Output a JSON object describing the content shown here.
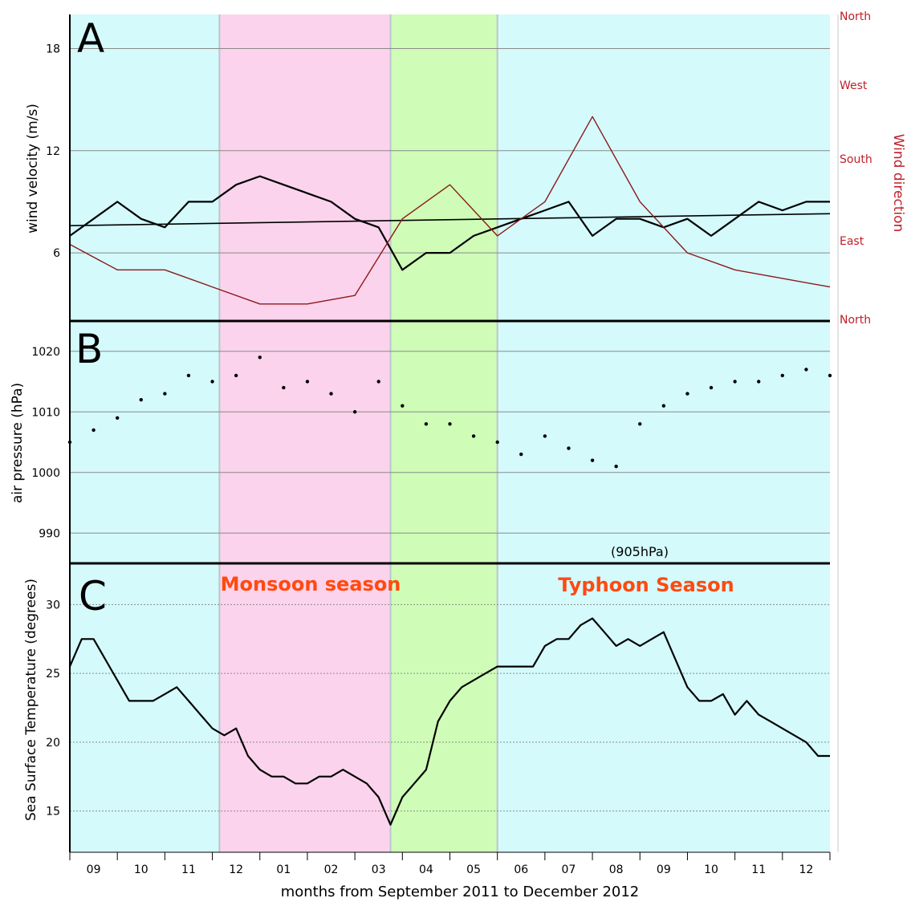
{
  "figure": {
    "xlabel": "months from September 2011 to December 2012",
    "month_labels": [
      "09",
      "10",
      "11",
      "12",
      "01",
      "02",
      "03",
      "04",
      "05",
      "06",
      "07",
      "08",
      "09",
      "10",
      "11",
      "12"
    ],
    "season_labels": {
      "monsoon": "Monsoon season",
      "typhoon": "Typhoon Season"
    },
    "colors": {
      "winter_bg": "#d4fafc",
      "monsoon_bg": "#fcd3ec",
      "spring_bg": "#cffdb7",
      "wind_direction": "#8b1a1a",
      "direction_label": "#c0202a",
      "season_label": "#ff4a10",
      "series": "#000000"
    }
  },
  "chart_data": [
    {
      "type": "line",
      "panel": "A",
      "title": "",
      "xlabel": "",
      "ylabel": "wind velocity (m/s)",
      "ylabel_right": "Wind direction",
      "yticks": [
        6,
        12,
        18
      ],
      "ylim": [
        2,
        20
      ],
      "right_ticks": [
        "North",
        "West",
        "South",
        "East",
        "North"
      ],
      "x_months": [
        0,
        16
      ],
      "grid": true,
      "series": [
        {
          "x": [
            0,
            0.5,
            1,
            1.5,
            2,
            2.5,
            3,
            3.5,
            4,
            4.5,
            5,
            5.5,
            6,
            6.5,
            7,
            7.5,
            8,
            8.5,
            9,
            9.5,
            10,
            10.5,
            11,
            11.5,
            12,
            12.5,
            13,
            13.5,
            14,
            14.5,
            15,
            15.5,
            16
          ],
          "y": [
            7,
            8,
            9,
            8,
            7.5,
            9,
            9,
            10,
            10.5,
            10,
            9.5,
            9,
            8,
            7.5,
            5,
            6,
            6,
            7,
            7.5,
            8,
            8.5,
            9,
            7,
            8,
            8,
            7.5,
            8,
            7,
            8,
            9,
            8.5,
            9,
            9
          ]
        },
        {
          "x": [
            0,
            16
          ],
          "y": [
            7.6,
            8.3
          ]
        },
        {
          "x": [
            0,
            1,
            2,
            3,
            4,
            5,
            6,
            7,
            8,
            9,
            10,
            11,
            12,
            13,
            14,
            15,
            16
          ],
          "y": [
            6.5,
            5,
            5,
            4,
            3,
            3,
            3.5,
            8,
            10,
            7,
            9,
            14,
            9,
            6,
            5,
            4.5,
            4
          ]
        }
      ]
    },
    {
      "type": "scatter",
      "panel": "B",
      "title": "",
      "xlabel": "",
      "ylabel": "air pressure (hPa)",
      "yticks": [
        990,
        1000,
        1010,
        1020
      ],
      "ylim": [
        985,
        1025
      ],
      "annotation": "(905hPa)",
      "grid": true,
      "series": [
        {
          "x": [
            0,
            0.5,
            1,
            1.5,
            2,
            2.5,
            3,
            3.5,
            4,
            4.5,
            5,
            5.5,
            6,
            6.5,
            7,
            7.5,
            8,
            8.5,
            9,
            9.5,
            10,
            10.5,
            11,
            11.5,
            12,
            12.5,
            13,
            13.5,
            14,
            14.5,
            15,
            15.5,
            16
          ],
          "y": [
            1005,
            1007,
            1009,
            1012,
            1013,
            1016,
            1015,
            1016,
            1019,
            1014,
            1015,
            1013,
            1010,
            1015,
            1011,
            1008,
            1008,
            1006,
            1005,
            1003,
            1006,
            1004,
            1002,
            1001,
            1008,
            1011,
            1013,
            1014,
            1015,
            1015,
            1016,
            1017,
            1016
          ]
        }
      ]
    },
    {
      "type": "line",
      "panel": "C",
      "title": "",
      "xlabel": "",
      "ylabel": "Sea Surface Temperature (degrees)",
      "yticks": [
        15,
        20,
        25,
        30
      ],
      "ylim": [
        12,
        33
      ],
      "grid": true,
      "series": [
        {
          "x": [
            0,
            0.25,
            0.5,
            0.75,
            1,
            1.25,
            1.5,
            1.75,
            2,
            2.25,
            2.5,
            2.75,
            3,
            3.25,
            3.5,
            3.75,
            4,
            4.25,
            4.5,
            4.75,
            5,
            5.25,
            5.5,
            5.75,
            6,
            6.25,
            6.5,
            6.75,
            7,
            7.25,
            7.5,
            7.75,
            8,
            8.25,
            8.5,
            8.75,
            9,
            9.25,
            9.5,
            9.75,
            10,
            10.25,
            10.5,
            10.75,
            11,
            11.25,
            11.5,
            11.75,
            12,
            12.25,
            12.5,
            12.75,
            13,
            13.25,
            13.5,
            13.75,
            14,
            14.25,
            14.5,
            14.75,
            15,
            15.25,
            15.5,
            15.75,
            16
          ],
          "y": [
            25.5,
            27.5,
            27.5,
            26,
            24.5,
            23,
            23,
            23,
            23.5,
            24,
            23,
            22,
            21,
            20.5,
            21,
            19,
            18,
            17.5,
            17.5,
            17,
            17,
            17.5,
            17.5,
            18,
            17.5,
            17,
            16,
            14,
            16,
            17,
            18,
            21.5,
            23,
            24,
            24.5,
            25,
            25.5,
            25.5,
            25.5,
            25.5,
            27,
            27.5,
            27.5,
            28.5,
            29,
            28,
            27,
            27.5,
            27,
            27.5,
            28,
            26,
            24,
            23,
            23,
            23.5,
            22,
            23,
            22,
            21.5,
            21,
            20.5,
            20,
            19,
            19
          ]
        }
      ]
    }
  ]
}
